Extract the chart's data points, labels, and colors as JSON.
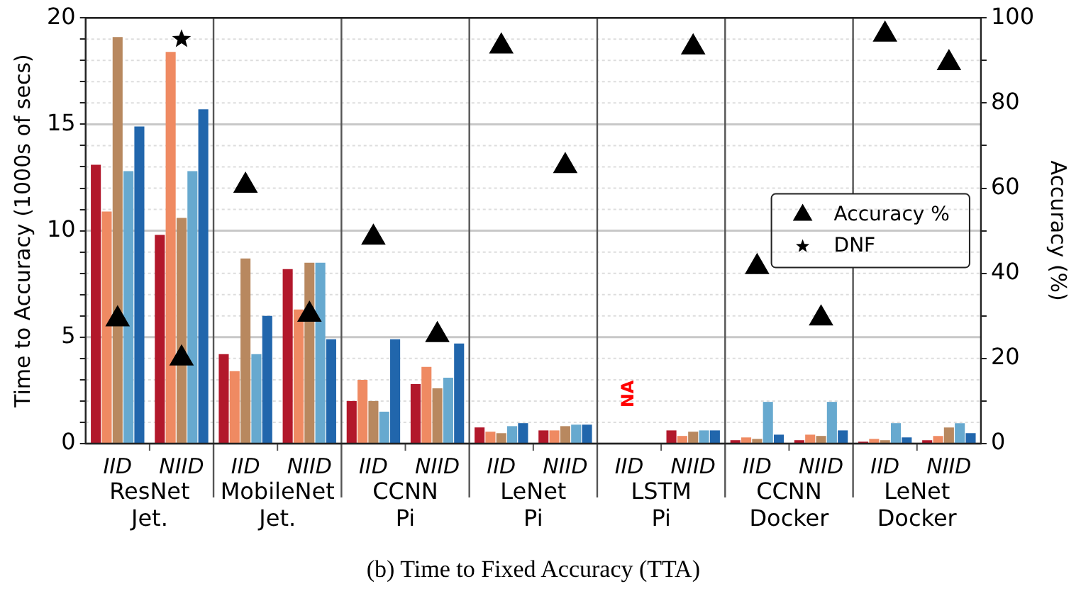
{
  "chart_data": {
    "type": "bar",
    "title": "(b) Time to Fixed Accuracy (TTA)",
    "categories": [
      "IID",
      "NIID",
      "IID",
      "NIID",
      "IID",
      "NIID",
      "IID",
      "NIID",
      "IID",
      "NIID",
      "IID",
      "NIID",
      "IID",
      "NIID"
    ],
    "series": [
      {
        "color": "#b2182b",
        "values": [
          13.1,
          9.8,
          4.2,
          8.2,
          2.0,
          2.8,
          0.76,
          0.62,
          null,
          0.62,
          0.16,
          0.16,
          0.09,
          0.16
        ]
      },
      {
        "color": "#ef8a62",
        "values": [
          10.9,
          18.4,
          3.4,
          6.3,
          3.0,
          3.6,
          0.56,
          0.62,
          null,
          0.36,
          0.29,
          0.42,
          0.22,
          0.36
        ]
      },
      {
        "color": "#b8885f",
        "values": [
          19.1,
          10.6,
          8.7,
          8.5,
          2.0,
          2.6,
          0.49,
          0.82,
          null,
          0.56,
          0.22,
          0.36,
          0.16,
          0.76
        ]
      },
      {
        "color": "#67a9cf",
        "values": [
          12.8,
          12.8,
          4.2,
          8.5,
          1.5,
          3.1,
          0.82,
          0.89,
          null,
          0.62,
          1.96,
          1.96,
          0.96,
          0.96
        ]
      },
      {
        "color": "#2166ac",
        "values": [
          14.9,
          15.7,
          6.0,
          4.9,
          4.9,
          4.7,
          0.96,
          0.89,
          null,
          0.62,
          0.42,
          0.62,
          0.29,
          0.49
        ]
      },
      {
        "type": "scatter",
        "name": "Accuracy %",
        "color": "#000000",
        "marker": "triangle",
        "axis": "y2",
        "values": [
          29.2,
          20.0,
          60.6,
          30.3,
          48.4,
          25.5,
          93.3,
          65.2,
          null,
          93.1,
          41.5,
          29.4,
          96.1,
          89.4
        ]
      },
      {
        "type": "scatter",
        "name": "DNF",
        "color": "#000000",
        "marker": "star",
        "values": [
          null,
          19.0,
          null,
          null,
          null,
          null,
          null,
          null,
          null,
          null,
          null,
          null,
          null,
          null
        ]
      }
    ],
    "ylabel": "Time to Accuracy (1000s of secs)",
    "y2label": "Accuracy (%)",
    "ylim": [
      0,
      20
    ],
    "yticks": [
      0,
      {
        "value": 1,
        "label": null
      },
      {
        "value": 2,
        "label": null
      },
      {
        "value": 3,
        "label": null
      },
      {
        "value": 4,
        "label": null
      },
      5,
      {
        "value": 6,
        "label": null
      },
      {
        "value": 7,
        "label": null
      },
      {
        "value": 8,
        "label": null
      },
      {
        "value": 9,
        "label": null
      },
      10,
      {
        "value": 11,
        "label": null
      },
      {
        "value": 12,
        "label": null
      },
      {
        "value": 13,
        "label": null
      },
      {
        "value": 14,
        "label": null
      },
      15,
      {
        "value": 16,
        "label": null
      },
      {
        "value": 17,
        "label": null
      },
      {
        "value": 18,
        "label": null
      },
      {
        "value": 19,
        "label": null
      },
      20
    ],
    "y2lim": [
      0,
      100
    ],
    "y2ticks": [
      0,
      {
        "value": 10,
        "label": null
      },
      20,
      {
        "value": 30,
        "label": null
      },
      40,
      {
        "value": 50,
        "label": null
      },
      60,
      {
        "value": 70,
        "label": null
      },
      80,
      {
        "value": 90,
        "label": null
      },
      100
    ],
    "grid": "y",
    "legend": "right",
    "annotations": [
      "ResNet\nJet.",
      "MobileNet\nJet.",
      "CCNN\nPi",
      "LeNet\nPi",
      "LSTM\nPi",
      "CCNN\nDocker",
      "LeNet\nDocker",
      "NA"
    ]
  }
}
